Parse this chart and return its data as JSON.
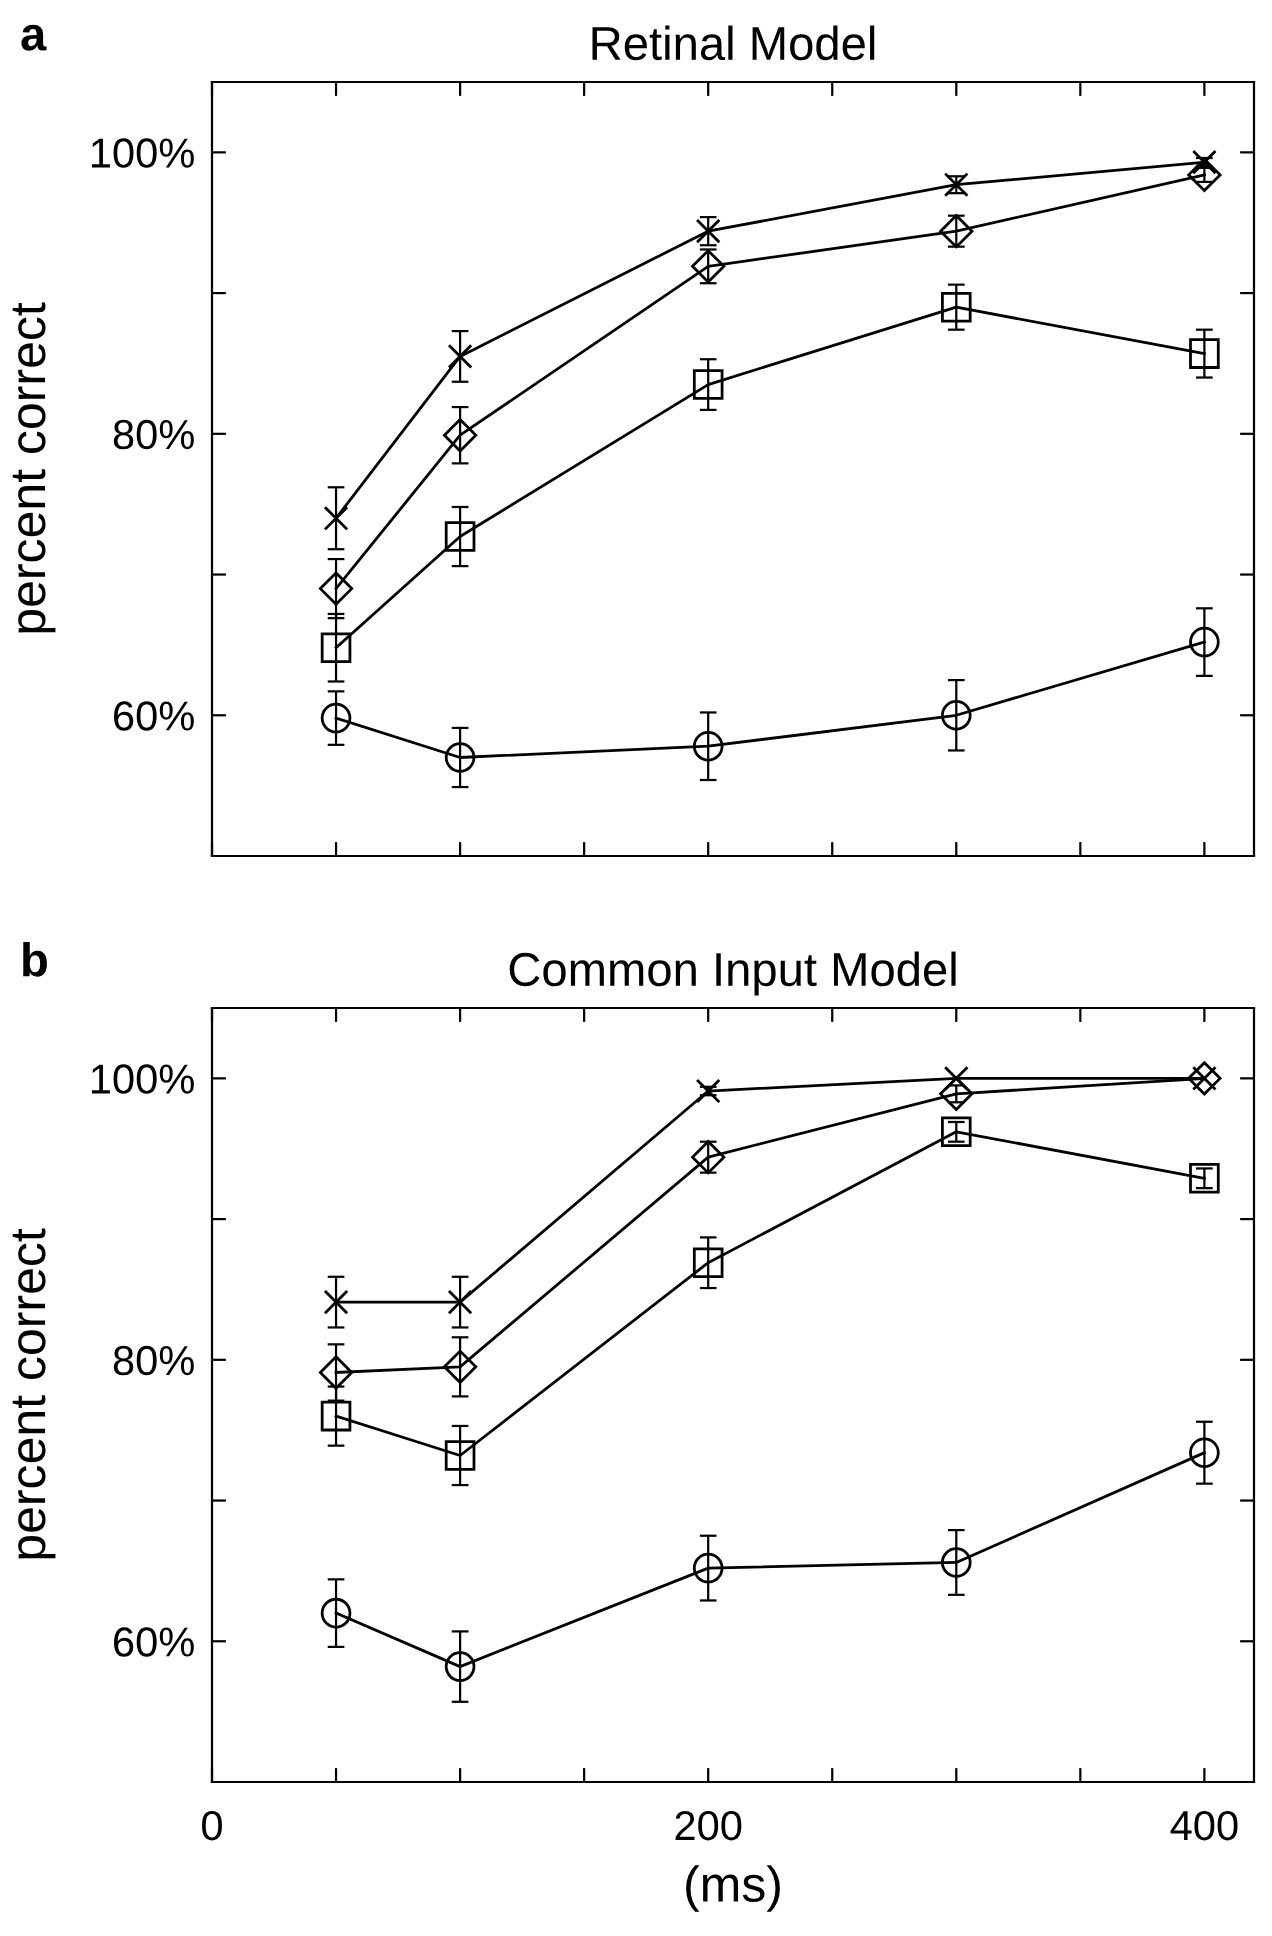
{
  "chart_data": [
    {
      "type": "line",
      "title": "Retinal Model",
      "ylabel": "percent correct",
      "annotations": [
        "a"
      ],
      "x": [
        50,
        100,
        200,
        300,
        400
      ],
      "xlim": [
        0,
        420
      ],
      "ylim": [
        50,
        105
      ],
      "xticks": [
        0,
        {
          "value": 50,
          "label": null
        },
        {
          "value": 100,
          "label": null
        },
        {
          "value": 150,
          "label": null
        },
        200,
        {
          "value": 250,
          "label": null
        },
        {
          "value": 300,
          "label": null
        },
        {
          "value": 350,
          "label": null
        },
        400
      ],
      "yticks": [
        {
          "value": 60,
          "label": "60%"
        },
        {
          "value": 70,
          "label": null
        },
        {
          "value": 80,
          "label": "80%"
        },
        {
          "value": 90,
          "label": null
        },
        {
          "value": 100,
          "label": "100%"
        }
      ],
      "tick_labels": "y",
      "grid": false,
      "series": [
        {
          "color": "#000000",
          "marker": "cross",
          "values": [
            74.0,
            85.5,
            94.4,
            97.7,
            99.3
          ],
          "errors": [
            2.2,
            1.8,
            1.0,
            0.6,
            0.3
          ]
        },
        {
          "color": "#000000",
          "marker": "diamond",
          "values": [
            69.0,
            79.9,
            91.9,
            94.4,
            98.4
          ],
          "errors": [
            2.1,
            2.0,
            1.2,
            1.1,
            0.5
          ]
        },
        {
          "color": "#000000",
          "marker": "square",
          "values": [
            64.8,
            72.7,
            83.5,
            89.0,
            85.7
          ],
          "errors": [
            2.4,
            2.1,
            1.8,
            1.6,
            1.7
          ]
        },
        {
          "color": "#000000",
          "marker": "circle",
          "values": [
            59.8,
            57.0,
            57.8,
            60.0,
            65.2
          ],
          "errors": [
            1.9,
            2.1,
            2.4,
            2.5,
            2.4
          ]
        }
      ]
    },
    {
      "type": "line",
      "title": "Common Input Model",
      "ylabel": "percent correct",
      "xlabel": "(ms)",
      "annotations": [
        "b"
      ],
      "x": [
        50,
        100,
        200,
        300,
        400
      ],
      "xlim": [
        0,
        420
      ],
      "ylim": [
        50,
        105
      ],
      "xticks": [
        0,
        {
          "value": 50,
          "label": null
        },
        {
          "value": 100,
          "label": null
        },
        {
          "value": 150,
          "label": null
        },
        200,
        {
          "value": 250,
          "label": null
        },
        {
          "value": 300,
          "label": null
        },
        {
          "value": 350,
          "label": null
        },
        400
      ],
      "yticks": [
        {
          "value": 60,
          "label": "60%"
        },
        {
          "value": 70,
          "label": null
        },
        {
          "value": 80,
          "label": "80%"
        },
        {
          "value": 90,
          "label": null
        },
        {
          "value": 100,
          "label": "100%"
        }
      ],
      "grid": false,
      "series": [
        {
          "color": "#000000",
          "marker": "cross",
          "values": [
            84.1,
            84.1,
            99.1,
            100,
            100
          ],
          "errors": [
            1.8,
            1.8,
            0.3,
            null,
            null
          ]
        },
        {
          "color": "#000000",
          "marker": "diamond",
          "values": [
            79.1,
            79.5,
            94.4,
            98.9,
            100
          ],
          "errors": [
            2.0,
            2.1,
            1.1,
            0.6,
            null
          ]
        },
        {
          "color": "#000000",
          "marker": "square",
          "values": [
            76.0,
            73.2,
            86.9,
            96.2,
            92.9
          ],
          "errors": [
            2.1,
            2.1,
            1.8,
            0.7,
            0.7
          ]
        },
        {
          "color": "#000000",
          "marker": "circle",
          "values": [
            62.0,
            58.2,
            65.2,
            65.6,
            73.4
          ],
          "errors": [
            2.4,
            2.5,
            2.3,
            2.3,
            2.2
          ]
        }
      ]
    }
  ]
}
